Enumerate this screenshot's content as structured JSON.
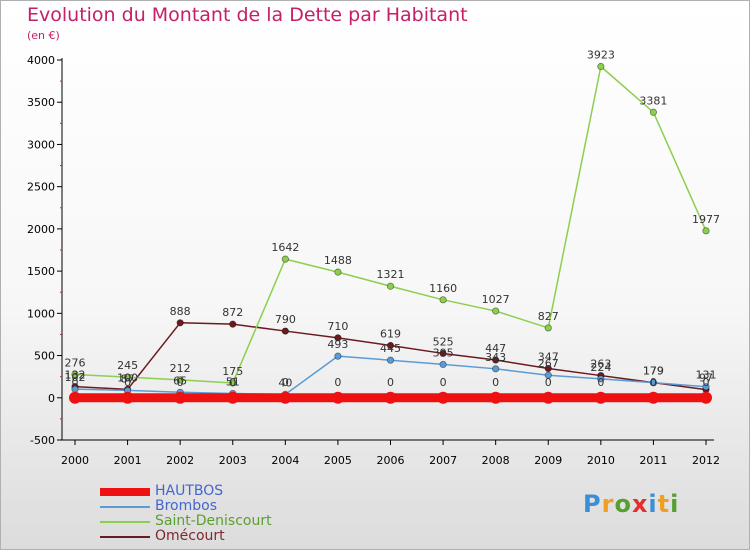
{
  "chart_data": {
    "type": "line",
    "title": "Evolution du Montant de la Dette par Habitant",
    "subtitle": "(en €)",
    "xlabel": "",
    "ylabel": "",
    "ylim": [
      -500,
      4000
    ],
    "yticks": [
      -500,
      0,
      500,
      1000,
      1500,
      2000,
      2500,
      3000,
      3500,
      4000
    ],
    "x": [
      "2000",
      "2001",
      "2002",
      "2003",
      "2004",
      "2005",
      "2006",
      "2007",
      "2008",
      "2009",
      "2010",
      "2011",
      "2012"
    ],
    "grid": false,
    "legend_position": "bottom-left",
    "series": [
      {
        "name": "HAUTBOS",
        "color": "#ee1111",
        "values": [
          0,
          0,
          0,
          0,
          0,
          0,
          0,
          0,
          0,
          0,
          0,
          0,
          0
        ],
        "labels": [
          "",
          "",
          "",
          "",
          "",
          "",
          "",
          "",
          "",
          "",
          "",
          "",
          ""
        ]
      },
      {
        "name": "Brombos",
        "color": "#5b9bd5",
        "values": [
          102,
          87,
          65,
          51,
          40,
          493,
          445,
          395,
          343,
          267,
          224,
          179,
          131
        ],
        "labels": [
          "102",
          "87",
          "65",
          "51",
          "40",
          "493",
          "445",
          "395",
          "343",
          "267",
          "224",
          "179",
          "131"
        ]
      },
      {
        "name": "Saint-Deniscourt",
        "color": "#8ccf4d",
        "values": [
          276,
          245,
          212,
          175,
          1642,
          1488,
          1321,
          1160,
          1027,
          827,
          3923,
          3381,
          1977
        ],
        "labels": [
          "276",
          "245",
          "212",
          "175",
          "1642",
          "1488",
          "1321",
          "1160",
          "1027",
          "827",
          "3923",
          "3381",
          "1977"
        ]
      },
      {
        "name": "Omécourt",
        "color": "#6b1a1f",
        "values": [
          132,
          100,
          888,
          872,
          790,
          710,
          619,
          525,
          447,
          347,
          263,
          179,
          97
        ],
        "labels": [
          "132",
          "100",
          "888",
          "872",
          "790",
          "710",
          "619",
          "525",
          "447",
          "347",
          "263",
          "179",
          "97"
        ]
      }
    ],
    "zero_labels": [
      "0",
      "0",
      "0",
      "0",
      "0",
      "0",
      "0",
      "0",
      "0",
      "0",
      "0",
      "0",
      "0"
    ]
  },
  "logo": {
    "letters": [
      "P",
      "r",
      "o",
      "x",
      "i",
      "t",
      "i"
    ],
    "colors": [
      "#3a8fd6",
      "#f0a020",
      "#55a030",
      "#e23030",
      "#3a8fd6",
      "#f0a020",
      "#55a030"
    ]
  }
}
